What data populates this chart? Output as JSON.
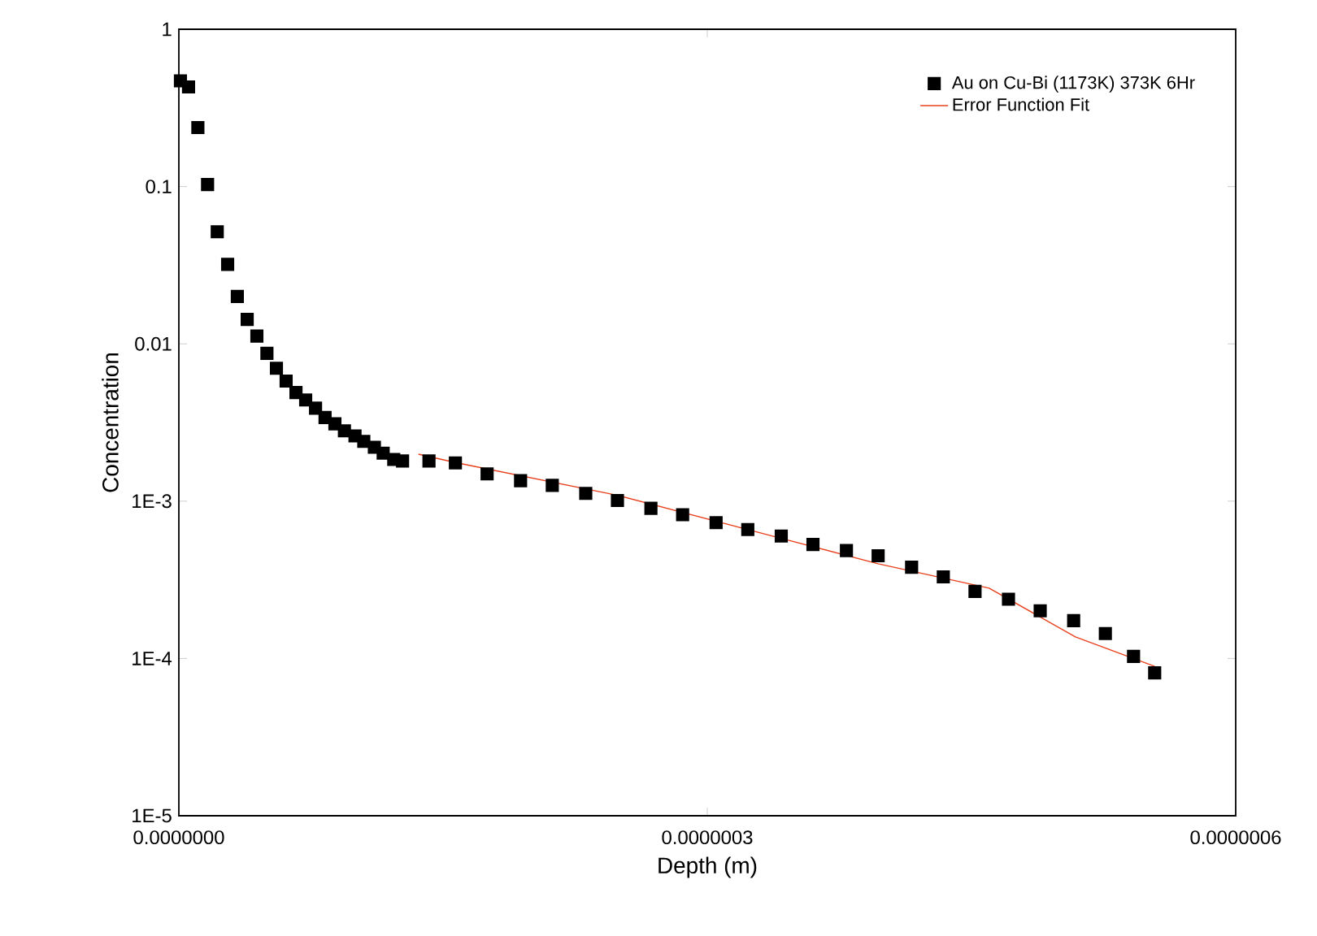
{
  "chart_data": {
    "type": "scatter",
    "xlabel": "Depth (m)",
    "ylabel": "Concentration",
    "log": "y",
    "legend": "top right",
    "xlim": [
      0,
      6e-07
    ],
    "xticks": [
      {
        "value": 0,
        "label": "0.0000000"
      },
      {
        "value": 3e-07,
        "label": "0.0000003"
      },
      {
        "value": 6e-07,
        "label": "0.0000006"
      }
    ],
    "ylim": [
      1e-05,
      1
    ],
    "yticks": [
      1,
      0.1,
      0.01,
      {
        "value": 0.001,
        "label": "1E-3"
      },
      {
        "value": 0.0001,
        "label": "1E-4"
      },
      {
        "value": 1e-05,
        "label": "1E-5"
      }
    ],
    "series": [
      {
        "name": "Au on Cu-Bi (1173K) 373K 6Hr",
        "marker": "square",
        "color": "#000000",
        "x": [
          9e-10,
          5.5e-09,
          1.08e-08,
          1.63e-08,
          2.18e-08,
          2.77e-08,
          3.32e-08,
          3.88e-08,
          4.43e-08,
          5e-08,
          5.54e-08,
          6.09e-08,
          6.65e-08,
          7.2e-08,
          7.76e-08,
          8.3e-08,
          8.86e-08,
          9.4e-08,
          1e-07,
          1.05e-07,
          1.11e-07,
          1.16e-07,
          1.22e-07,
          1.27e-07,
          1.42e-07,
          1.57e-07,
          1.75e-07,
          1.94e-07,
          2.12e-07,
          2.31e-07,
          2.49e-07,
          2.68e-07,
          2.86e-07,
          3.05e-07,
          3.23e-07,
          3.42e-07,
          3.6e-07,
          3.79e-07,
          3.97e-07,
          4.16e-07,
          4.34e-07,
          4.52e-07,
          4.71e-07,
          4.89e-07,
          5.08e-07,
          5.26e-07,
          5.42e-07,
          5.54e-07
        ],
        "values": [
          0.47,
          0.43,
          0.237,
          0.103,
          0.0516,
          0.032,
          0.02,
          0.0143,
          0.0112,
          0.0087,
          0.007,
          0.0058,
          0.0049,
          0.0044,
          0.0039,
          0.0034,
          0.0031,
          0.0028,
          0.0026,
          0.0024,
          0.0022,
          0.00202,
          0.00184,
          0.0018,
          0.0018,
          0.00175,
          0.00149,
          0.00135,
          0.00126,
          0.00112,
          0.00101,
          0.0009,
          0.00082,
          0.00073,
          0.00066,
          0.0006,
          0.00053,
          0.000485,
          0.00045,
          0.00038,
          0.00033,
          0.000267,
          0.000238,
          0.000201,
          0.000174,
          0.000144,
          0.000103,
          8.1e-05
        ]
      },
      {
        "name": "Error Function Fit",
        "type": "line",
        "color": "#e8401c",
        "x": [
          1.36e-07,
          1.57e-07,
          2.49e-07,
          3.42e-07,
          3.97e-07,
          4.6e-07,
          5.09e-07,
          5.54e-07
        ],
        "values": [
          0.00199,
          0.00176,
          0.00109,
          0.00058,
          0.0004,
          0.00028,
          0.000137,
          8.9e-05
        ]
      }
    ]
  }
}
